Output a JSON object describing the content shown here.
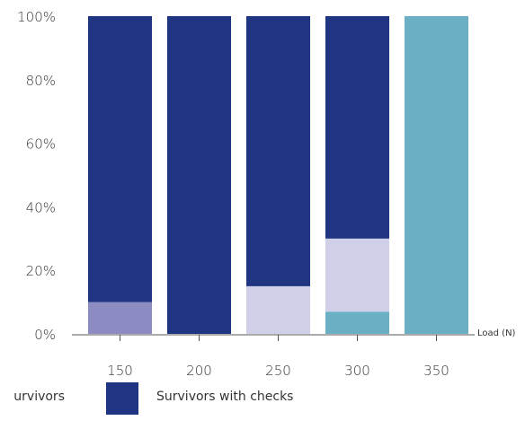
{
  "chart_data": {
    "type": "bar",
    "stacked": true,
    "categories": [
      "150",
      "200",
      "250",
      "300",
      "350"
    ],
    "xlabel": "Load (N)",
    "ylabel": "",
    "ylim": [
      0,
      100
    ],
    "yticks": [
      "0%",
      "20%",
      "40%",
      "60%",
      "80%",
      "100%"
    ],
    "grid": false,
    "legend_position": "bottom",
    "series": [
      {
        "key": "s1",
        "values": [
          0,
          0,
          0,
          7,
          100
        ],
        "color": "#6aafc4"
      },
      {
        "key": "s2",
        "values": [
          10,
          0,
          0,
          0,
          0
        ],
        "color": "#8c8cc2"
      },
      {
        "key": "s3",
        "values": [
          0,
          0,
          15,
          23,
          0
        ],
        "color": "#cfd0e8"
      },
      {
        "key": "s4",
        "name": "Survivors with checks",
        "values": [
          90,
          100,
          85,
          70,
          0
        ],
        "color": "#1f3582"
      }
    ],
    "legend": [
      {
        "label": "urvivors",
        "color": "#8c8cc2"
      },
      {
        "label": "Survivors with checks",
        "color": "#1f3582"
      }
    ]
  }
}
